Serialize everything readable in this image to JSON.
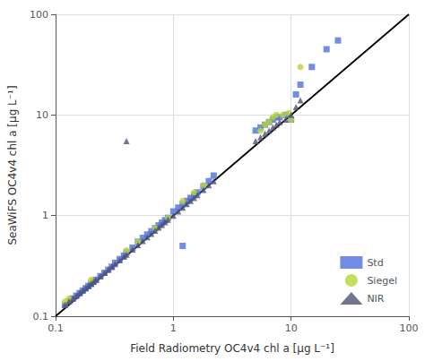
{
  "chart_data": {
    "type": "scatter",
    "xlabel": "Field Radiometry OC4v4 chl a [μg L⁻¹]",
    "ylabel": "SeaWiFS OC4v4 chl a [μg L⁻¹]",
    "log": true,
    "grid": true,
    "legend": "lower right",
    "xlim": [
      0.1,
      100
    ],
    "ylim": [
      0.1,
      100
    ],
    "xticks": [
      0.1,
      1,
      10,
      100
    ],
    "yticks": [
      0.1,
      1,
      10,
      100
    ],
    "series": [
      {
        "type": "line",
        "color": "#000000",
        "line_style": "solid",
        "x": [
          0.1,
          100
        ],
        "values": [
          0.1,
          100
        ]
      },
      {
        "name": "Std",
        "type": "scatter",
        "marker": "square",
        "x": [
          0.12,
          0.13,
          0.14,
          0.15,
          0.16,
          0.17,
          0.18,
          0.19,
          0.2,
          0.21,
          0.22,
          0.24,
          0.26,
          0.28,
          0.3,
          0.32,
          0.35,
          0.38,
          0.4,
          0.45,
          0.5,
          0.55,
          0.6,
          0.65,
          0.7,
          0.75,
          0.8,
          0.85,
          0.9,
          1.0,
          1.1,
          1.2,
          1.3,
          1.4,
          1.5,
          1.6,
          1.8,
          2.0,
          2.2,
          1.2,
          5.0,
          5.5,
          6.0,
          6.5,
          7.0,
          7.5,
          8.0,
          9.0,
          10.0,
          11.0,
          12.0,
          15.0,
          20.0,
          25.0
        ],
        "values": [
          0.13,
          0.14,
          0.15,
          0.16,
          0.17,
          0.18,
          0.19,
          0.2,
          0.21,
          0.22,
          0.23,
          0.25,
          0.27,
          0.29,
          0.31,
          0.34,
          0.37,
          0.4,
          0.43,
          0.48,
          0.55,
          0.6,
          0.65,
          0.7,
          0.75,
          0.8,
          0.85,
          0.9,
          0.95,
          1.1,
          1.2,
          1.3,
          1.4,
          1.5,
          1.6,
          1.7,
          1.95,
          2.2,
          2.5,
          0.5,
          7.0,
          7.5,
          8.0,
          8.5,
          9.0,
          9.5,
          9.5,
          10.0,
          9.0,
          16.0,
          20.0,
          30.0,
          45.0,
          55.0
        ]
      },
      {
        "name": "Siegel",
        "type": "scatter",
        "marker": "circle",
        "x": [
          0.12,
          0.13,
          0.2,
          0.4,
          0.5,
          0.7,
          0.9,
          1.2,
          1.5,
          1.8,
          5.5,
          6.0,
          6.5,
          7.0,
          7.5,
          8.5,
          9.5,
          10.0,
          12.0
        ],
        "values": [
          0.14,
          0.15,
          0.23,
          0.45,
          0.55,
          0.75,
          0.95,
          1.4,
          1.7,
          2.0,
          7.0,
          8.0,
          8.5,
          9.5,
          10.0,
          10.0,
          10.5,
          9.0,
          30.0
        ]
      },
      {
        "name": "NIR",
        "type": "scatter",
        "marker": "triangle",
        "x": [
          0.12,
          0.13,
          0.14,
          0.15,
          0.16,
          0.17,
          0.18,
          0.19,
          0.2,
          0.21,
          0.22,
          0.24,
          0.26,
          0.28,
          0.3,
          0.32,
          0.35,
          0.38,
          0.4,
          0.45,
          0.5,
          0.55,
          0.6,
          0.65,
          0.7,
          0.75,
          0.8,
          0.85,
          0.9,
          1.0,
          1.1,
          1.2,
          1.3,
          1.4,
          1.5,
          1.6,
          1.8,
          2.0,
          2.2,
          0.4,
          5.0,
          5.5,
          6.0,
          6.5,
          7.0,
          7.5,
          8.0,
          9.0,
          10.0,
          11.0,
          12.0
        ],
        "values": [
          0.13,
          0.14,
          0.15,
          0.16,
          0.17,
          0.18,
          0.19,
          0.2,
          0.21,
          0.22,
          0.23,
          0.25,
          0.27,
          0.29,
          0.31,
          0.33,
          0.36,
          0.39,
          0.41,
          0.46,
          0.51,
          0.56,
          0.61,
          0.66,
          0.71,
          0.76,
          0.81,
          0.86,
          0.91,
          1.0,
          1.1,
          1.2,
          1.3,
          1.4,
          1.5,
          1.6,
          1.8,
          2.0,
          2.2,
          5.5,
          5.5,
          6.0,
          6.5,
          7.0,
          7.5,
          8.0,
          8.5,
          9.0,
          10.0,
          12.0,
          14.0
        ]
      }
    ]
  }
}
